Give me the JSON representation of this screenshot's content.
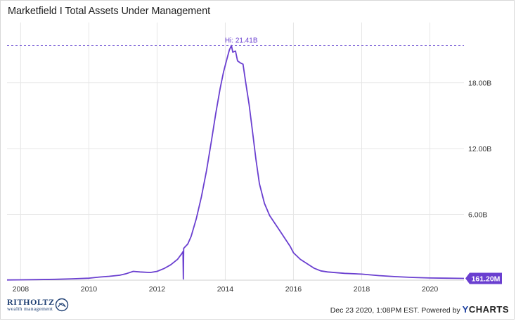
{
  "title": "Marketfield I Total Assets Under Management",
  "footer": {
    "timestamp": "Dec 23 2020, 1:08PM EST.",
    "powered_by": "Powered by",
    "ycharts_y": "Y",
    "ycharts_rest": "CHARTS",
    "logo_brand": "RITHOLTZ",
    "logo_sub": "wealth management"
  },
  "colors": {
    "line": "#6a3fd0",
    "grid": "#e6e6e6",
    "dashed": "#7b61d6",
    "label_bg": "#6a3fd0"
  },
  "chart_data": {
    "type": "line",
    "title": "Marketfield I Total Assets Under Management",
    "xlabel": "",
    "ylabel": "",
    "xlim": [
      2007.6,
      2021.0
    ],
    "ylim": [
      0,
      23.5
    ],
    "x_ticks": [
      2008,
      2010,
      2012,
      2014,
      2016,
      2018,
      2020
    ],
    "x_tick_labels": [
      "2008",
      "2010",
      "2012",
      "2014",
      "2016",
      "2018",
      "2020"
    ],
    "y_ticks": [
      6,
      12,
      18
    ],
    "y_tick_labels": [
      "6.00B",
      "12.00B",
      "18.00B"
    ],
    "high_label": "Hi: 21.41B",
    "high_value": 21.41,
    "last_label": "161.20M",
    "last_value": 0.1612,
    "grid": true,
    "series": [
      {
        "values": [
          [
            2007.6,
            0.02
          ],
          [
            2008.0,
            0.03
          ],
          [
            2008.5,
            0.05
          ],
          [
            2009.0,
            0.08
          ],
          [
            2009.5,
            0.12
          ],
          [
            2010.0,
            0.18
          ],
          [
            2010.3,
            0.28
          ],
          [
            2010.6,
            0.35
          ],
          [
            2010.9,
            0.45
          ],
          [
            2011.1,
            0.6
          ],
          [
            2011.3,
            0.8
          ],
          [
            2011.5,
            0.75
          ],
          [
            2011.8,
            0.7
          ],
          [
            2012.0,
            0.8
          ],
          [
            2012.2,
            1.05
          ],
          [
            2012.4,
            1.4
          ],
          [
            2012.6,
            1.9
          ],
          [
            2012.72,
            2.4
          ],
          [
            2012.76,
            2.6
          ],
          [
            2012.77,
            0.1
          ],
          [
            2012.78,
            2.9
          ],
          [
            2012.9,
            3.3
          ],
          [
            2013.0,
            4.0
          ],
          [
            2013.15,
            5.6
          ],
          [
            2013.3,
            7.6
          ],
          [
            2013.45,
            10.0
          ],
          [
            2013.6,
            12.8
          ],
          [
            2013.72,
            15.2
          ],
          [
            2013.85,
            17.5
          ],
          [
            2013.95,
            19.0
          ],
          [
            2014.05,
            20.2
          ],
          [
            2014.12,
            21.0
          ],
          [
            2014.18,
            21.41
          ],
          [
            2014.22,
            20.8
          ],
          [
            2014.3,
            20.9
          ],
          [
            2014.36,
            20.0
          ],
          [
            2014.45,
            19.8
          ],
          [
            2014.52,
            19.7
          ],
          [
            2014.6,
            18.0
          ],
          [
            2014.7,
            16.0
          ],
          [
            2014.8,
            13.5
          ],
          [
            2014.9,
            11.0
          ],
          [
            2015.0,
            8.8
          ],
          [
            2015.15,
            7.0
          ],
          [
            2015.3,
            5.9
          ],
          [
            2015.45,
            5.2
          ],
          [
            2015.6,
            4.5
          ],
          [
            2015.75,
            3.8
          ],
          [
            2015.9,
            3.1
          ],
          [
            2016.0,
            2.5
          ],
          [
            2016.2,
            1.9
          ],
          [
            2016.4,
            1.5
          ],
          [
            2016.6,
            1.1
          ],
          [
            2016.8,
            0.85
          ],
          [
            2017.0,
            0.75
          ],
          [
            2017.5,
            0.62
          ],
          [
            2018.0,
            0.55
          ],
          [
            2018.5,
            0.42
          ],
          [
            2019.0,
            0.32
          ],
          [
            2019.5,
            0.25
          ],
          [
            2020.0,
            0.2
          ],
          [
            2020.5,
            0.18
          ],
          [
            2021.0,
            0.1612
          ]
        ]
      }
    ]
  }
}
